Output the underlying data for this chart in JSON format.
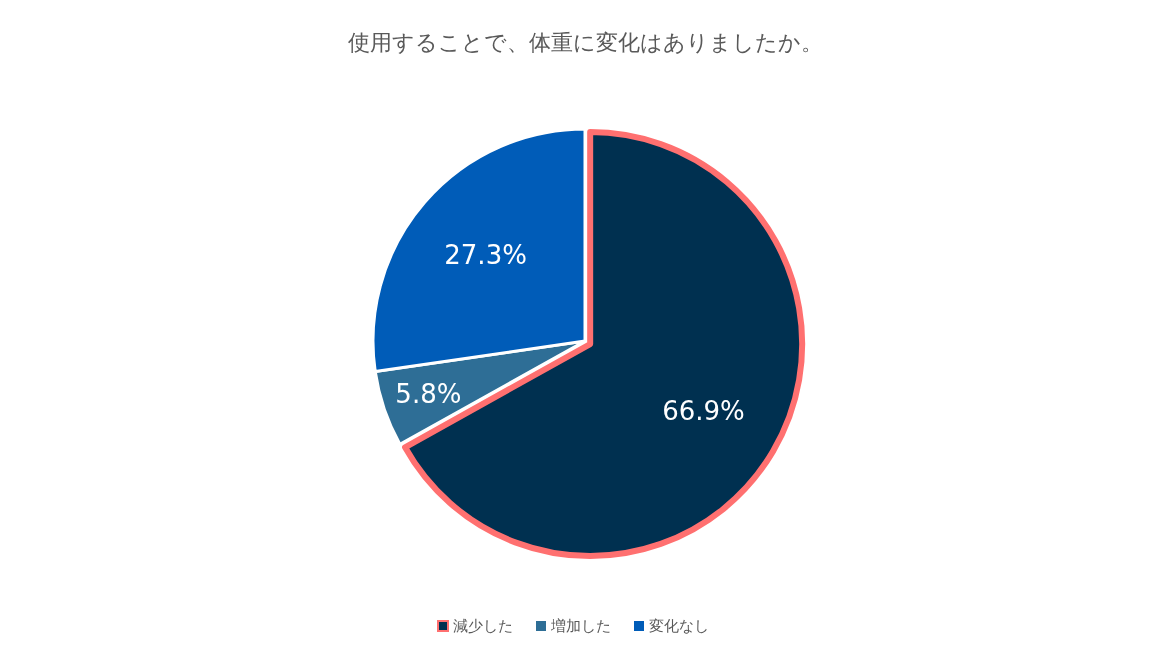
{
  "chart_data": {
    "type": "pie",
    "title": "使用することで、体重に変化はありましたか。",
    "categories": [
      "減少した",
      "増加した",
      "変化なし"
    ],
    "values": [
      66.9,
      5.8,
      27.3
    ],
    "value_labels": [
      "66.9%",
      "5.8%",
      "27.3%"
    ],
    "colors": [
      "#003050",
      "#2e6e96",
      "#005cb8"
    ],
    "legend": "bottom"
  }
}
